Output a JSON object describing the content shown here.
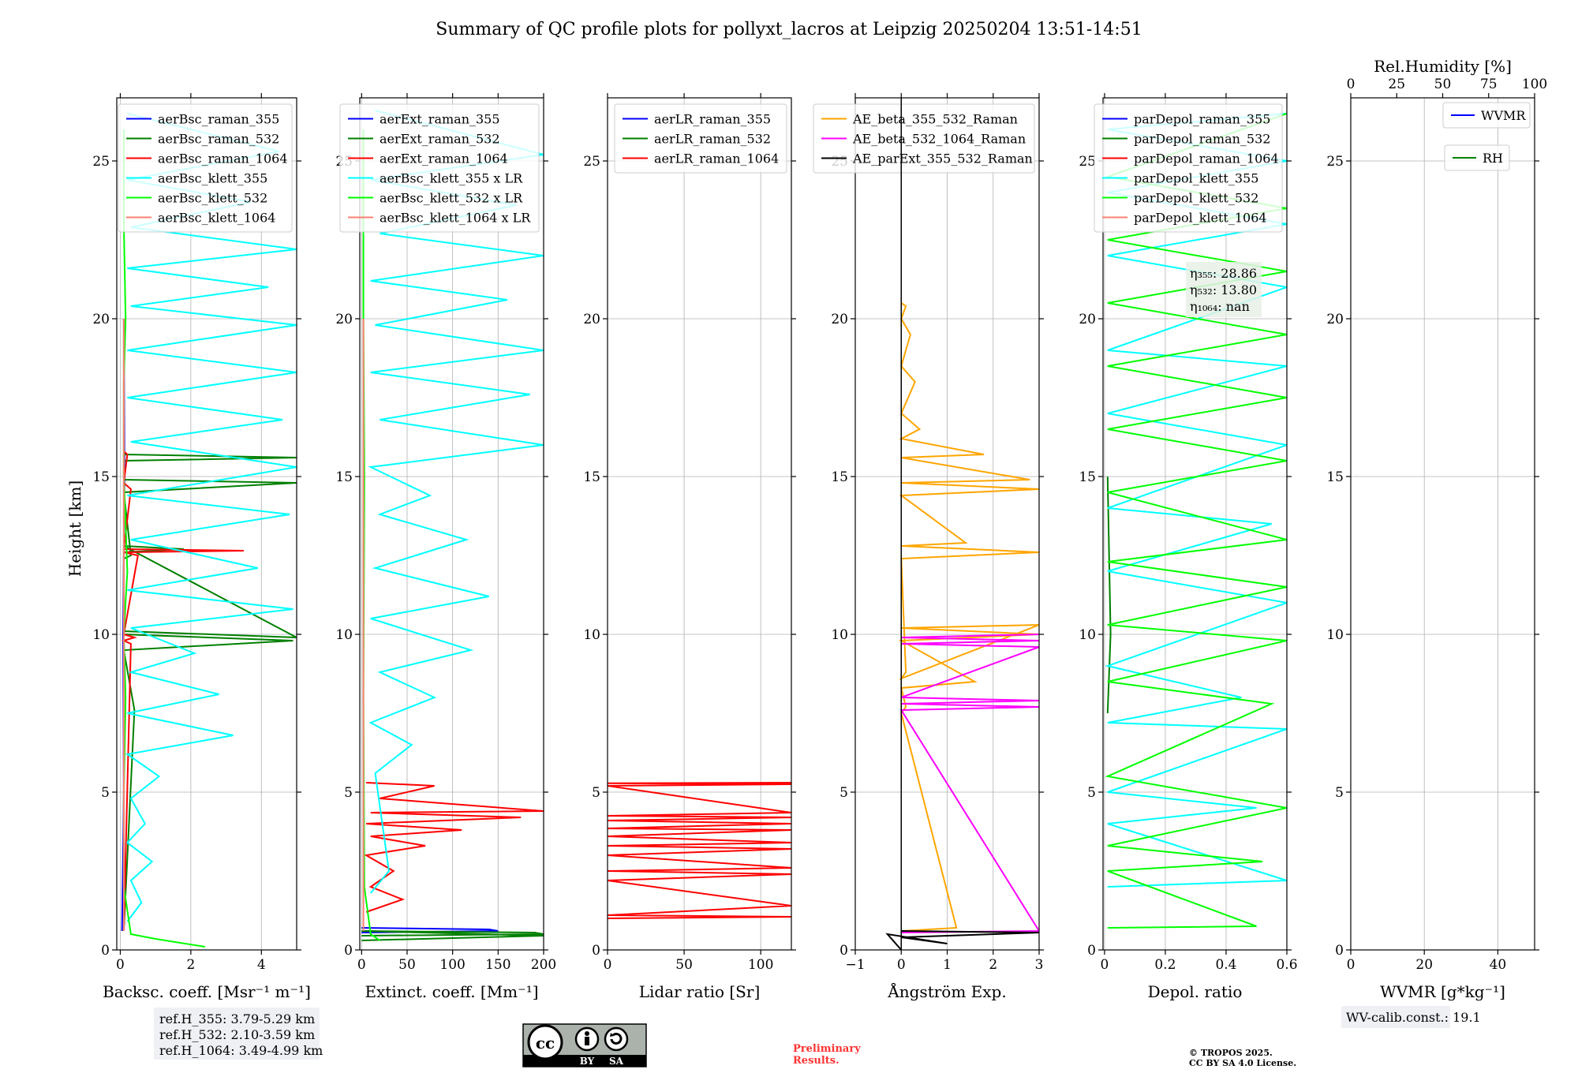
{
  "title": "Summary of QC profile plots for pollyxt_lacros at Leipzig 20250204 13:51-14:51",
  "ylabel": "Height [km]",
  "chart_data": [
    {
      "type": "line",
      "id": "backscatter",
      "xlabel": "Backsc. coeff. [Msr⁻¹ m⁻¹]",
      "xlim": [
        -0.1,
        5
      ],
      "ylim": [
        0,
        27
      ],
      "xticks": [
        0,
        2,
        4
      ],
      "yticks": [
        0,
        5,
        10,
        15,
        20,
        25
      ],
      "grid": true,
      "legend_position": "top-right",
      "series": [
        {
          "name": "aerBsc_raman_355",
          "color": "#0000ff",
          "x": [
            0.05,
            0.1,
            0.08,
            0.12,
            0.1
          ],
          "y": [
            0.6,
            5,
            10,
            15,
            20
          ]
        },
        {
          "name": "aerBsc_raman_532",
          "color": "#008000",
          "x": [
            0.1,
            0.4,
            0.1,
            4.9,
            0.1,
            0.1,
            0.3,
            0.1,
            5.0,
            0.1,
            0.1,
            5.0,
            0.1,
            0.1,
            1.8,
            0.1,
            5.0,
            0.1,
            0.1
          ],
          "y": [
            0.6,
            7.6,
            9.5,
            9.8,
            10.0,
            12.4,
            12.5,
            14.5,
            14.8,
            14.9,
            15.5,
            15.6,
            15.7,
            12.6,
            12.7,
            12.8,
            9.9,
            10.1,
            20
          ]
        },
        {
          "name": "aerBsc_raman_1064",
          "color": "#ff0000",
          "x": [
            0.1,
            0.3,
            0.1,
            0.4,
            0.1,
            0.5,
            0.1,
            3.5,
            0.1,
            0.3,
            0.1,
            0.2,
            0.1
          ],
          "y": [
            0.6,
            9.7,
            9.8,
            9.9,
            10.0,
            12.5,
            12.6,
            12.65,
            12.7,
            14.6,
            14.8,
            15.7,
            15.8
          ]
        },
        {
          "name": "aerBsc_klett_355",
          "color": "#00ffff",
          "x": [
            0.2,
            0.6,
            0.3,
            0.9,
            0.2,
            0.7,
            0.3,
            1.1,
            0.2,
            3.2,
            0.2,
            2.8,
            0.3,
            2.1,
            0.3,
            4.9,
            0.2,
            3.9,
            0.3,
            4.8,
            0.2,
            5.0,
            0.3,
            4.6,
            0.2,
            5.0,
            0.2,
            5.0,
            0.3,
            4.2,
            0.2,
            5.0,
            0.3,
            3.7,
            0.2,
            4.5,
            0.2
          ],
          "y": [
            0.9,
            1.5,
            2.2,
            2.8,
            3.4,
            4.0,
            4.8,
            5.5,
            6.2,
            6.8,
            7.5,
            8.1,
            8.8,
            9.4,
            10.2,
            10.8,
            11.4,
            12.1,
            13.0,
            13.8,
            14.4,
            15.3,
            16.1,
            16.8,
            17.5,
            18.3,
            19.0,
            19.8,
            20.4,
            21.0,
            21.6,
            22.2,
            22.9,
            23.7,
            24.4,
            25.3,
            26.5
          ]
        },
        {
          "name": "aerBsc_klett_532",
          "color": "#00ff00",
          "x": [
            2.4,
            1.0,
            0.3,
            0.1,
            0.1,
            0.15,
            0.1,
            0.2,
            0.1,
            0.1,
            0.15,
            0.1,
            0.1
          ],
          "y": [
            0.1,
            0.35,
            0.5,
            2.0,
            5.0,
            8.0,
            10.0,
            12.0,
            15.0,
            18.0,
            20.0,
            23.0,
            26.0
          ]
        },
        {
          "name": "aerBsc_klett_1064",
          "color": "#fa8072",
          "x": [
            0.1,
            0.1,
            0.1
          ],
          "y": [
            0.6,
            10,
            20
          ]
        }
      ],
      "box": {
        "label_lines": [
          "ref.H_355: 3.79-5.29 km",
          "ref.H_532: 2.10-3.59 km",
          "ref.H_1064: 3.49-4.99 km"
        ]
      }
    },
    {
      "type": "line",
      "id": "extinction",
      "xlabel": "Extinct. coeff. [Mm⁻¹]",
      "xlim": [
        -2,
        200
      ],
      "ylim": [
        0,
        27
      ],
      "xticks": [
        0,
        50,
        100,
        150,
        200
      ],
      "yticks": [
        0,
        5,
        10,
        15,
        20,
        25
      ],
      "grid": true,
      "legend_position": "top-right",
      "series": [
        {
          "name": "aerExt_raman_355",
          "color": "#0000ff",
          "x": [
            0,
            150,
            140,
            0
          ],
          "y": [
            0.55,
            0.6,
            0.65,
            0.7
          ]
        },
        {
          "name": "aerExt_raman_532",
          "color": "#008000",
          "x": [
            0,
            200,
            190,
            0,
            200,
            0
          ],
          "y": [
            0.45,
            0.5,
            0.55,
            0.6,
            0.45,
            0.3
          ]
        },
        {
          "name": "aerExt_raman_1064",
          "color": "#ff0000",
          "x": [
            5,
            45,
            10,
            35,
            5,
            70,
            10,
            110,
            5,
            175,
            10,
            200,
            20,
            80,
            5
          ],
          "y": [
            1.2,
            1.6,
            2.0,
            2.5,
            3.0,
            3.3,
            3.6,
            3.8,
            4.0,
            4.2,
            4.35,
            4.4,
            4.8,
            5.2,
            5.3
          ]
        },
        {
          "name": "aerBsc_klett_355 x LR",
          "color": "#00ffff",
          "x": [
            10,
            30,
            15,
            55,
            10,
            80,
            20,
            120,
            10,
            140,
            15,
            115,
            20,
            75,
            10,
            200,
            20,
            185,
            10,
            200,
            15,
            160,
            10,
            200,
            20,
            170,
            10,
            200,
            15
          ],
          "y": [
            1.8,
            2.5,
            5.6,
            6.5,
            7.2,
            8.0,
            8.8,
            9.5,
            10.5,
            11.2,
            12.1,
            13.0,
            13.8,
            14.4,
            15.3,
            16.0,
            16.8,
            17.6,
            18.3,
            19.0,
            19.8,
            20.6,
            21.2,
            22.0,
            22.7,
            23.6,
            24.4,
            25.2,
            26.6
          ]
        },
        {
          "name": "aerBsc_klett_532 x LR",
          "color": "#00ff00",
          "x": [
            20,
            10,
            3,
            2,
            3,
            2,
            2
          ],
          "y": [
            0.3,
            0.5,
            2,
            8,
            15,
            20,
            26
          ]
        },
        {
          "name": "aerBsc_klett_1064 x LR",
          "color": "#fa8072",
          "x": [
            2,
            2
          ],
          "y": [
            0.6,
            20
          ]
        }
      ]
    },
    {
      "type": "line",
      "id": "lidar_ratio",
      "xlabel": "Lidar ratio [Sr]",
      "xlim": [
        0,
        120
      ],
      "ylim": [
        0,
        27
      ],
      "xticks": [
        0,
        50,
        100
      ],
      "yticks": [
        0,
        5,
        10,
        15,
        20,
        25
      ],
      "grid": true,
      "legend_position": "top-right",
      "series": [
        {
          "name": "aerLR_raman_355",
          "color": "#0000ff",
          "x": [],
          "y": []
        },
        {
          "name": "aerLR_raman_532",
          "color": "#008000",
          "x": [],
          "y": []
        },
        {
          "name": "aerLR_raman_1064",
          "color": "#ff0000",
          "x": [
            0,
            120,
            0,
            120,
            0,
            120,
            0,
            120,
            0,
            120,
            0,
            120,
            0,
            120,
            0,
            120,
            0,
            120,
            0,
            120,
            0,
            120,
            0,
            120
          ],
          "y": [
            1.0,
            1.05,
            1.1,
            1.4,
            2.2,
            2.4,
            2.5,
            2.6,
            3.0,
            3.2,
            3.3,
            3.4,
            3.6,
            3.8,
            3.85,
            4.0,
            4.1,
            4.2,
            4.25,
            4.35,
            5.2,
            5.25,
            5.28,
            5.3
          ]
        }
      ]
    },
    {
      "type": "line",
      "id": "angstrom",
      "xlabel": "Ångström Exp.",
      "xlim": [
        -1,
        3
      ],
      "ylim": [
        0,
        27
      ],
      "xticks": [
        -1,
        0,
        1,
        2,
        3
      ],
      "yticks": [
        0,
        5,
        10,
        15,
        20,
        25
      ],
      "grid": true,
      "legend_position": "top-right",
      "series": [
        {
          "name": "AE_beta_355_532_Raman",
          "color": "#ffa500",
          "x": [
            0,
            1.2,
            0,
            0.1,
            0,
            1.6,
            0,
            3.0,
            0,
            3.0,
            0,
            0.1,
            0,
            3.0,
            0,
            1.4,
            0,
            3.0,
            0,
            2.8,
            0,
            1.8,
            0,
            0.4,
            0,
            0.3,
            0,
            0.2,
            0,
            0.1,
            0
          ],
          "y": [
            0.6,
            0.7,
            7.5,
            7.7,
            8.3,
            8.5,
            9.8,
            10.0,
            10.2,
            10.3,
            8.6,
            8.8,
            12.4,
            12.6,
            12.8,
            12.9,
            14.4,
            14.6,
            14.8,
            14.9,
            15.6,
            15.7,
            16.2,
            16.5,
            17.0,
            18.0,
            18.5,
            19.5,
            20.0,
            20.4,
            20.5
          ]
        },
        {
          "name": "AE_beta_532_1064_Raman",
          "color": "#ff00ff",
          "x": [
            0,
            3.0,
            0,
            3.0,
            0,
            3.0,
            0,
            3.0,
            0,
            3.0,
            0,
            3.0
          ],
          "y": [
            0.55,
            0.6,
            7.6,
            7.7,
            7.8,
            7.9,
            8.0,
            9.6,
            9.7,
            9.8,
            9.9,
            10.0
          ]
        },
        {
          "name": "AE_parExt_355_532_Raman",
          "color": "#000000",
          "x": [
            0,
            -0.3,
            1.0,
            0,
            3.0,
            0
          ],
          "y": [
            0,
            0.5,
            0.2,
            0.4,
            0.55,
            0.6
          ]
        }
      ]
    },
    {
      "type": "line",
      "id": "depolarization",
      "xlabel": "Depol. ratio",
      "xlim": [
        -0.005,
        0.6
      ],
      "ylim": [
        0,
        27
      ],
      "xticks": [
        0.0,
        0.2,
        0.4,
        0.6
      ],
      "yticks": [
        0,
        5,
        10,
        15,
        20,
        25
      ],
      "grid": true,
      "legend_position": "top-right",
      "series": [
        {
          "name": "parDepol_raman_355",
          "color": "#0000ff",
          "x": [],
          "y": []
        },
        {
          "name": "parDepol_raman_532",
          "color": "#008000",
          "x": [
            0.01,
            0.02,
            0.01
          ],
          "y": [
            7.5,
            10.0,
            15.0
          ]
        },
        {
          "name": "parDepol_raman_1064",
          "color": "#ff0000",
          "x": [],
          "y": []
        },
        {
          "name": "parDepol_klett_355",
          "color": "#00ffff",
          "x": [
            0.01,
            0.6,
            0.01,
            0.5,
            0.01,
            0.6,
            0.01,
            0.45,
            0.01,
            0.6,
            0.01,
            0.55,
            0.01,
            0.6,
            0.01,
            0.6,
            0.01,
            0.6,
            0.01,
            0.6,
            0.01,
            0.6,
            0.01,
            0.6
          ],
          "y": [
            2.0,
            2.2,
            4.0,
            4.5,
            5.0,
            7.0,
            7.2,
            8.0,
            9.0,
            11.0,
            12.0,
            13.5,
            14.0,
            16.0,
            17.0,
            18.5,
            19.0,
            21.0,
            22.0,
            23.0,
            24.0,
            25.0,
            26.0,
            26.5
          ]
        },
        {
          "name": "parDepol_klett_532",
          "color": "#00ff00",
          "x": [
            0.01,
            0.5,
            0.01,
            0.52,
            0.01,
            0.6,
            0.01,
            0.55,
            0.01,
            0.6,
            0.01,
            0.6,
            0.01,
            0.6,
            0.01,
            0.6,
            0.01,
            0.6,
            0.01,
            0.6,
            0.01,
            0.6,
            0.01,
            0.6,
            0.01,
            0.6
          ],
          "y": [
            0.7,
            0.75,
            2.5,
            2.8,
            3.3,
            4.5,
            5.5,
            7.8,
            8.5,
            9.8,
            10.3,
            11.5,
            12.3,
            13.0,
            14.5,
            15.5,
            16.5,
            17.5,
            18.5,
            19.5,
            20.5,
            21.5,
            22.5,
            23.5,
            24.5,
            26.5
          ]
        },
        {
          "name": "parDepol_klett_1064",
          "color": "#fa8072",
          "x": [],
          "y": []
        }
      ],
      "annotation": {
        "lines": [
          "η₃₅₅: 28.86",
          "η₅₃₂: 13.80",
          "η₁₀₆₄: nan"
        ]
      }
    },
    {
      "type": "line",
      "id": "wvmr",
      "xlabel": "WVMR [g*kg⁻¹]",
      "top_xlabel": "Rel.Humidity [%]",
      "xlim": [
        0,
        50
      ],
      "ylim": [
        0,
        27
      ],
      "xticks": [
        0,
        20,
        40
      ],
      "top_xticks": [
        0,
        25,
        50,
        75,
        100
      ],
      "yticks": [
        0,
        5,
        10,
        15,
        20,
        25
      ],
      "grid": true,
      "legend_position": "top-right",
      "series": [
        {
          "name": "WVMR",
          "color": "#0000ff",
          "x": [],
          "y": []
        },
        {
          "name": "RH",
          "color": "#008000",
          "x": [],
          "y": []
        }
      ],
      "box": {
        "label_lines": [
          "WV-calib.const.: 19.1"
        ]
      }
    }
  ],
  "footer": {
    "license_badge": {
      "cc": "cc",
      "by": "BY",
      "sa": "SA"
    },
    "preliminary": [
      "Preliminary",
      "Results."
    ],
    "copyright": [
      "© TROPOS 2025.",
      "CC BY SA 4.0 License."
    ]
  }
}
